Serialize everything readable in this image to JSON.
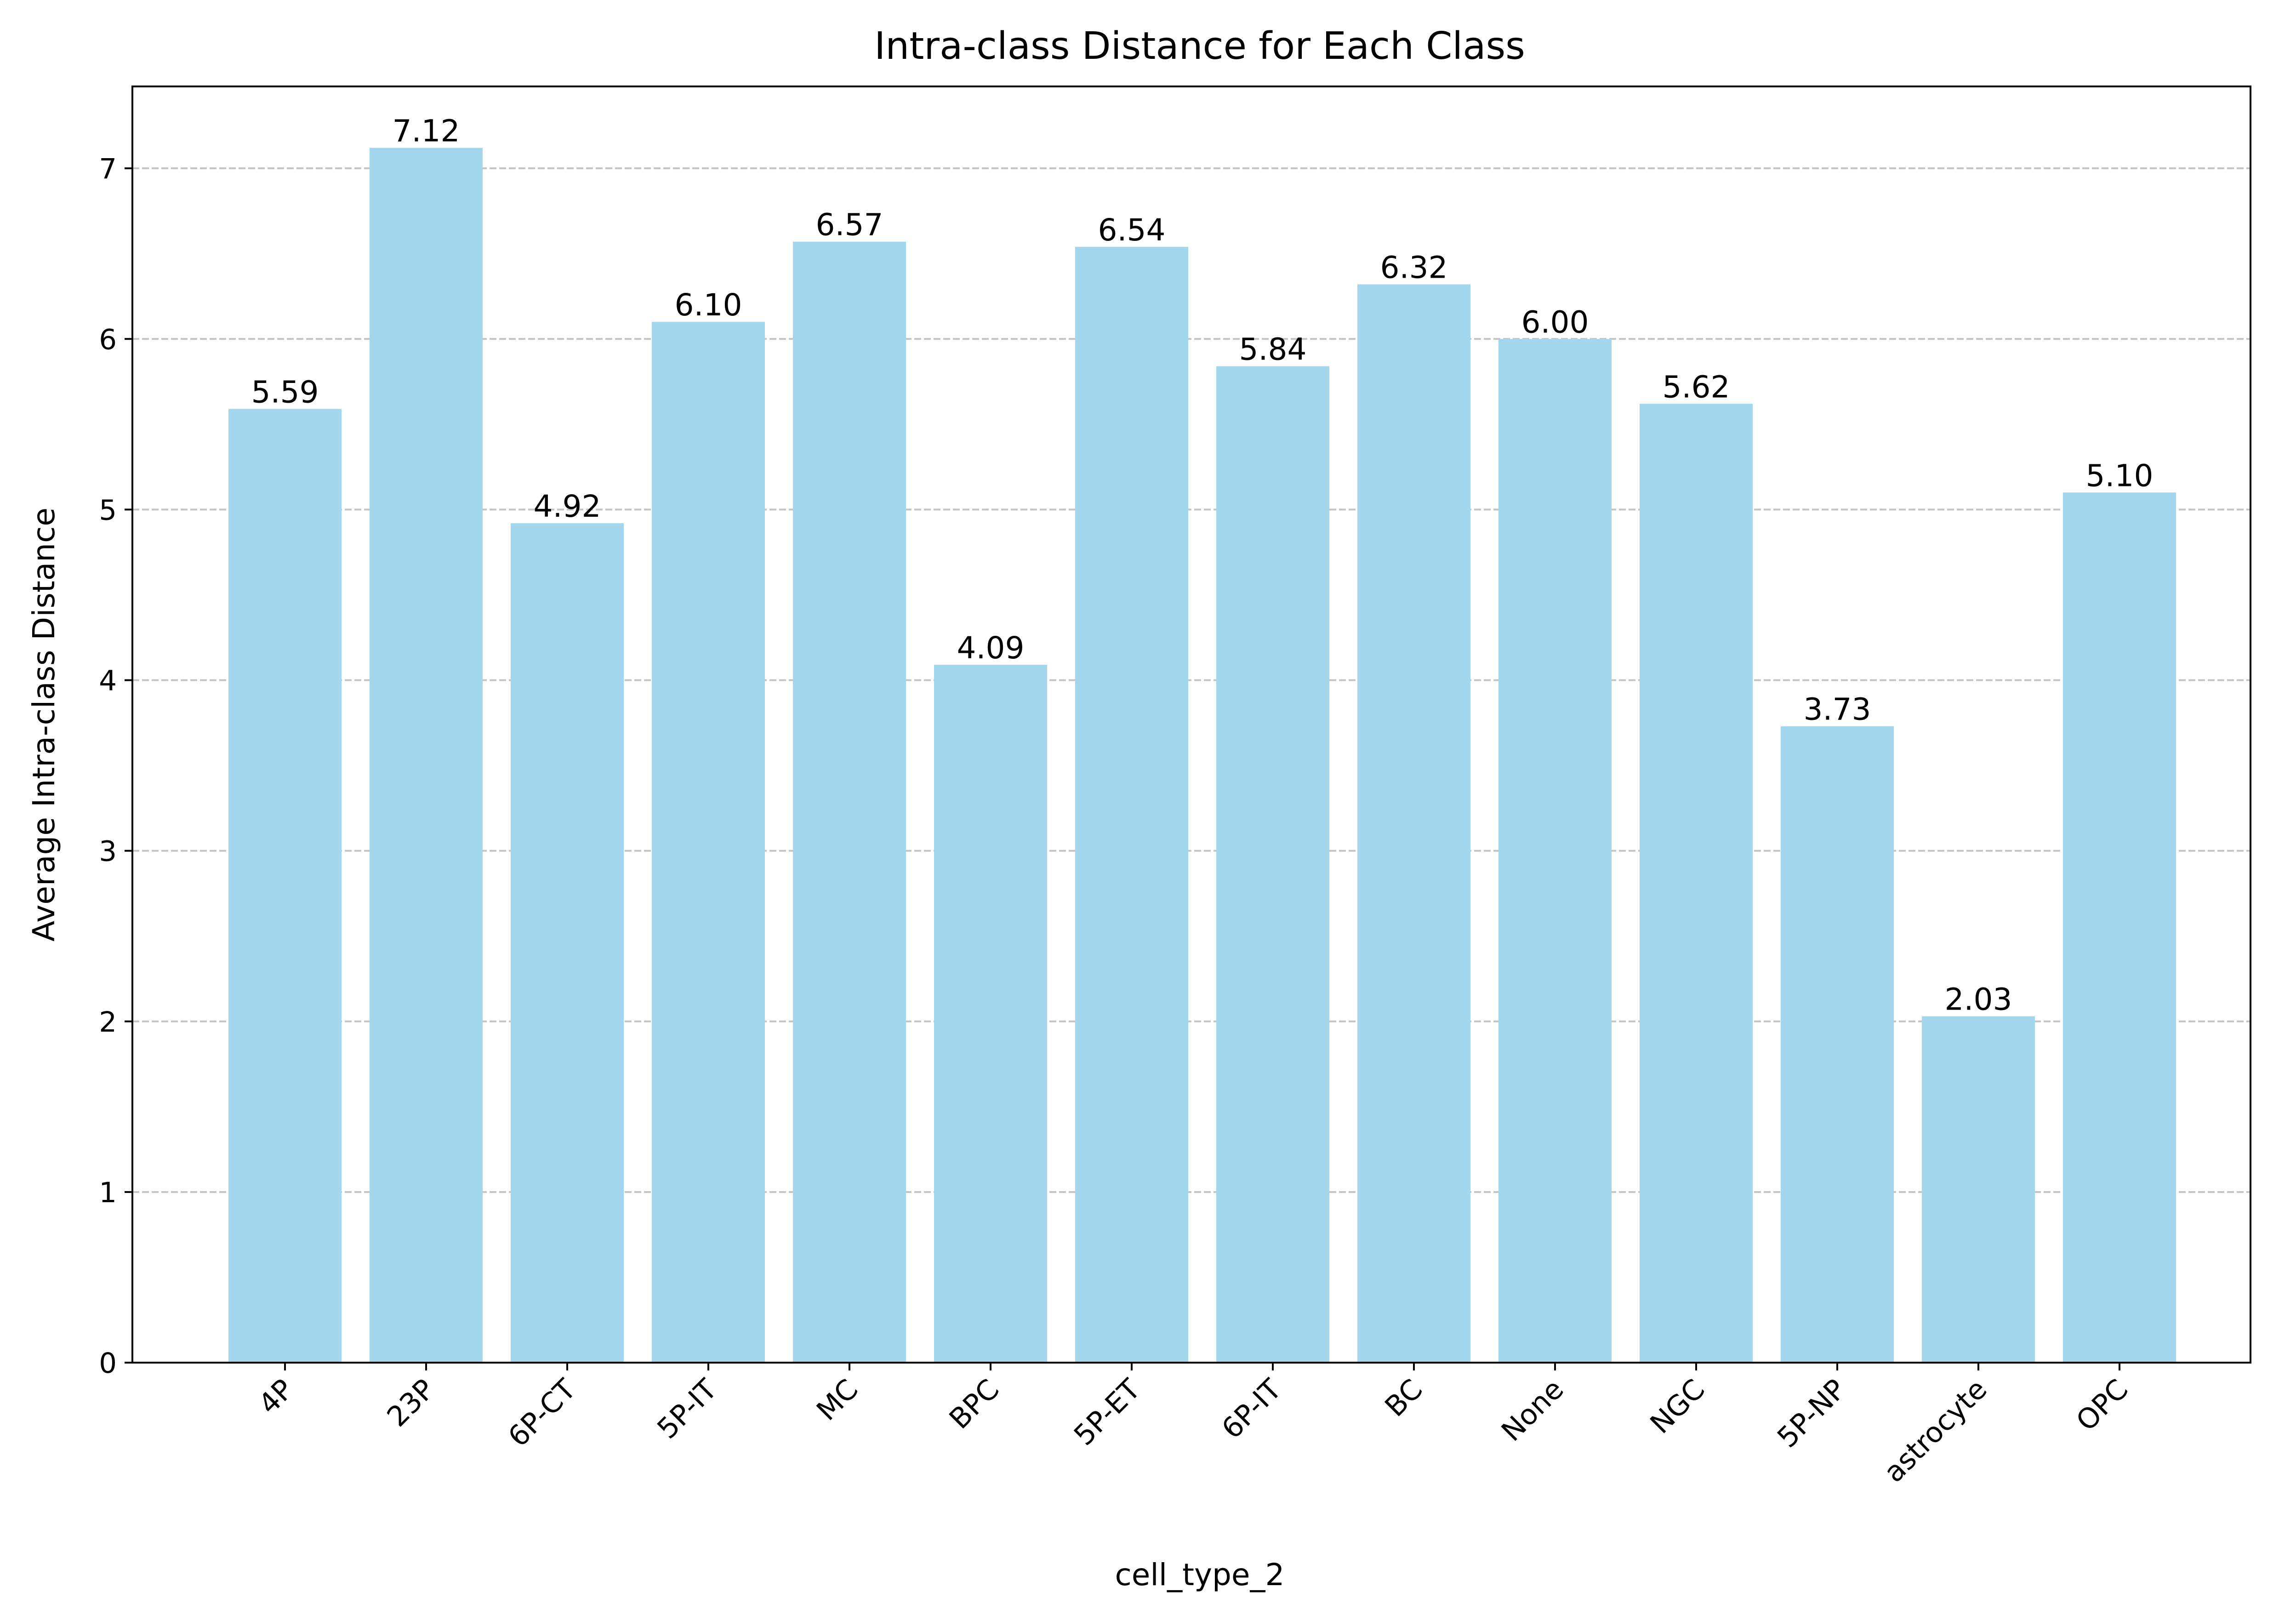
{
  "chart_data": {
    "type": "bar",
    "title": "Intra-class Distance for Each Class",
    "xlabel": "cell_type_2",
    "ylabel": "Average Intra-class Distance",
    "categories": [
      "4P",
      "23P",
      "6P-CT",
      "5P-IT",
      "MC",
      "BPC",
      "5P-ET",
      "6P-IT",
      "BC",
      "None",
      "NGC",
      "5P-NP",
      "astrocyte",
      "OPC"
    ],
    "values": [
      5.59,
      7.12,
      4.92,
      6.1,
      6.57,
      4.09,
      6.54,
      5.84,
      6.32,
      6.0,
      5.62,
      3.73,
      2.03,
      5.1
    ],
    "value_labels": [
      "5.59",
      "7.12",
      "4.92",
      "6.10",
      "6.57",
      "4.09",
      "6.54",
      "5.84",
      "6.32",
      "6.00",
      "5.62",
      "3.73",
      "2.03",
      "5.10"
    ],
    "yticks": [
      0,
      1,
      2,
      3,
      4,
      5,
      6,
      7
    ],
    "ylim": [
      0,
      7.48
    ],
    "grid": "y-dashed",
    "bar_color": "#a2d7ed",
    "grid_color": "#c4c4c4"
  }
}
